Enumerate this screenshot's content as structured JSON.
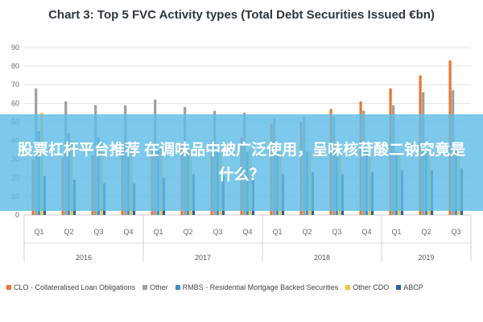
{
  "chart_data": {
    "type": "bar",
    "title": "Chart 3: Top 5 FVC Activity types (Total Debt Securities Issued €bn)",
    "xlabel": "",
    "ylabel": "",
    "ylim": [
      0,
      90
    ],
    "yticks": [
      "0",
      "10",
      "20",
      "30",
      "40",
      "50",
      "60",
      "70",
      "80",
      "90"
    ],
    "grid": true,
    "legend_position": "bottom",
    "categories": [
      "Q1",
      "Q2",
      "Q3",
      "Q4",
      "Q1",
      "Q2",
      "Q3",
      "Q4",
      "Q1",
      "Q2",
      "Q3",
      "Q4",
      "Q1",
      "Q2",
      "Q3"
    ],
    "year_groups": [
      {
        "label": "2016",
        "count": 4
      },
      {
        "label": "2017",
        "count": 4
      },
      {
        "label": "2018",
        "count": 4
      },
      {
        "label": "2019",
        "count": 3
      }
    ],
    "series": [
      {
        "name": "CLO - Collateralised Loan Obligations",
        "color": "#e8772e",
        "values": [
          30,
          31,
          32,
          34,
          36,
          38,
          40,
          42,
          49,
          50,
          57,
          61,
          68,
          75,
          83
        ]
      },
      {
        "name": "Other",
        "color": "#9e9e9e",
        "values": [
          68,
          61,
          59,
          59,
          62,
          58,
          56,
          55,
          52,
          53,
          53,
          56,
          59,
          66,
          67
        ]
      },
      {
        "name": "RMBS - Residential Mortgage Backed Securities",
        "color": "#3a8fcf",
        "values": [
          45,
          44,
          42,
          38,
          35,
          35,
          35,
          34,
          34,
          34,
          33,
          34,
          34,
          36,
          35
        ]
      },
      {
        "name": "Other CDO",
        "color": "#f2c23b",
        "values": [
          55,
          40,
          38,
          37,
          36,
          36,
          35,
          35,
          34,
          34,
          34,
          34,
          34,
          34,
          33
        ]
      },
      {
        "name": "ABCP",
        "color": "#2a5fa8",
        "values": [
          21,
          19,
          17,
          17,
          20,
          22,
          21,
          20,
          22,
          23,
          22,
          23,
          24,
          24,
          25
        ]
      }
    ]
  },
  "overlay": {
    "text": "股票杠杆平台推荐 在调味品中被广泛使用，呈味核苷酸二钠究竟是什么？"
  }
}
